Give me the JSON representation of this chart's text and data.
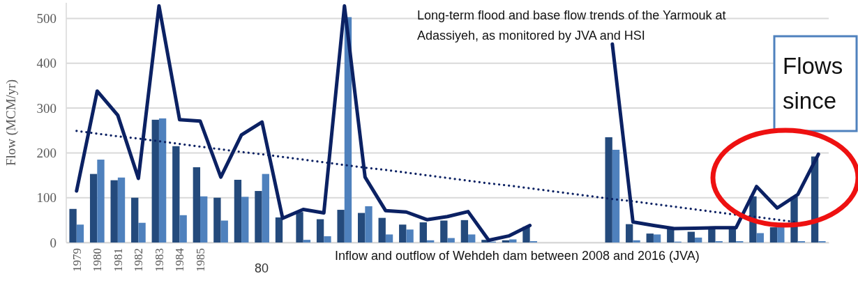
{
  "chart_data": {
    "type": "bar",
    "ylabel": "Flow (MCM/yr)",
    "categories": [
      "1979",
      "1980",
      "1981",
      "1982",
      "1983",
      "1984",
      "1985",
      null,
      null,
      null,
      null,
      null,
      null,
      null,
      null,
      null,
      null,
      null,
      null,
      null,
      null,
      null,
      null,
      null,
      null,
      null,
      null,
      null,
      null,
      null,
      null,
      null,
      null,
      null,
      null,
      null,
      null
    ],
    "series": [
      {
        "color": "#244a7c",
        "values": [
          75,
          153,
          139,
          100,
          274,
          215,
          168,
          100,
          140,
          115,
          56,
          68,
          52,
          73,
          66,
          55,
          40,
          45,
          49,
          50,
          6,
          5,
          35,
          null,
          null,
          null,
          235,
          41,
          20,
          30,
          24,
          30,
          30,
          103,
          34,
          102,
          192
        ]
      },
      {
        "color": "#4f81bd",
        "values": [
          40,
          185,
          145,
          44,
          277,
          61,
          103,
          49,
          102,
          153,
          null,
          6,
          14,
          503,
          81,
          18,
          29,
          5,
          10,
          18,
          2,
          7,
          3,
          null,
          null,
          null,
          207,
          5,
          18,
          2,
          11,
          3,
          3,
          21,
          35,
          3,
          3
        ]
      },
      {
        "type": "line",
        "color": "#0b2163",
        "line_style": "solid",
        "values": [
          115,
          338,
          284,
          143,
          528,
          274,
          271,
          146,
          240,
          269,
          54,
          74,
          66,
          528,
          146,
          71,
          68,
          51,
          58,
          69,
          5,
          15,
          38,
          null,
          null,
          null,
          443,
          46,
          38,
          31,
          32,
          33,
          33,
          125,
          77,
          107,
          197
        ]
      },
      {
        "type": "line",
        "color": "#0b2163",
        "line_style": "dotted",
        "values": [
          249,
          243,
          237,
          232,
          226,
          220,
          214,
          208,
          202,
          197,
          191,
          185,
          179,
          173,
          167,
          162,
          156,
          150,
          144,
          138,
          132,
          127,
          121,
          115,
          109,
          103,
          97,
          92,
          86,
          80,
          74,
          68,
          62,
          57,
          51,
          45,
          null
        ]
      }
    ],
    "ylim": [
      0,
      535
    ],
    "yticks": [
      0,
      100,
      200,
      300,
      400,
      500
    ],
    "grid": "y",
    "annotations": [
      "Long-term flood and base flow trends of the Yarmouk at Adassiyeh, as monitored by JVA and HSI",
      "Inflow and outflow of Wehdeh dam between 2008 and 2016 (JVA)",
      "Flows since",
      "80"
    ]
  }
}
